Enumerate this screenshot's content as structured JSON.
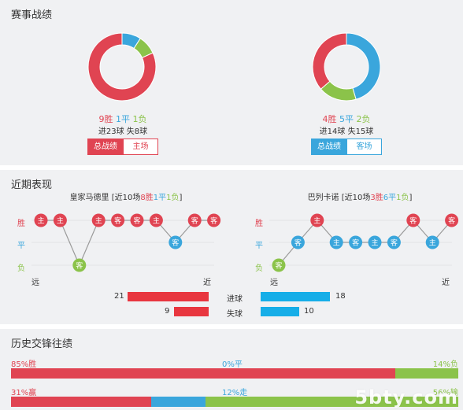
{
  "colors": {
    "win": "#e04452",
    "draw": "#3aa6dc",
    "loss": "#8bc34a",
    "scored_bar": "#e8363f",
    "conceded_bar": "#16aee8"
  },
  "season": {
    "title": "赛事战绩",
    "home": {
      "win": "9胜",
      "draw": "1平",
      "loss": "1负",
      "goals": "进23球  失8球",
      "btn_total": "总战绩",
      "btn_venue": "主场",
      "wins": 9,
      "draws": 1,
      "losses": 1
    },
    "away": {
      "win": "4胜",
      "draw": "5平",
      "loss": "2负",
      "goals": "进14球  失15球",
      "btn_total": "总战绩",
      "btn_venue": "客场",
      "wins": 4,
      "draws": 5,
      "losses": 2
    }
  },
  "recent": {
    "title": "近期表现",
    "row_labels": {
      "win": "胜",
      "draw": "平",
      "loss": "负"
    },
    "far": "远",
    "near": "近",
    "home": {
      "team": "皇家马德里",
      "prefix": "[近10场",
      "w": "8胜",
      "d": "1平",
      "l": "1负",
      "suffix": "]",
      "matches": [
        {
          "result": "W",
          "venue": "主"
        },
        {
          "result": "W",
          "venue": "主"
        },
        {
          "result": "L",
          "venue": "客"
        },
        {
          "result": "W",
          "venue": "主"
        },
        {
          "result": "W",
          "venue": "客"
        },
        {
          "result": "W",
          "venue": "客"
        },
        {
          "result": "W",
          "venue": "主"
        },
        {
          "result": "D",
          "venue": "客"
        },
        {
          "result": "W",
          "venue": "客"
        },
        {
          "result": "W",
          "venue": "客"
        }
      ]
    },
    "away": {
      "team": "巴列卡诺",
      "prefix": "[近10场",
      "w": "3胜",
      "d": "6平",
      "l": "1负",
      "suffix": "]",
      "matches": [
        {
          "result": "L",
          "venue": "客"
        },
        {
          "result": "D",
          "venue": "客"
        },
        {
          "result": "W",
          "venue": "主"
        },
        {
          "result": "D",
          "venue": "主"
        },
        {
          "result": "D",
          "venue": "客"
        },
        {
          "result": "D",
          "venue": "主"
        },
        {
          "result": "D",
          "venue": "客"
        },
        {
          "result": "W",
          "venue": "客"
        },
        {
          "result": "D",
          "venue": "主"
        },
        {
          "result": "W",
          "venue": "客"
        }
      ]
    },
    "stats": {
      "scored_label": "进球",
      "conceded_label": "失球",
      "home_scored": 21,
      "home_conceded": 9,
      "away_scored": 18,
      "away_conceded": 10
    }
  },
  "history": {
    "title": "历史交锋往绩",
    "row1": {
      "left": "85%胜",
      "mid": "0%平",
      "right": "14%负",
      "a": 85,
      "b": 0,
      "c": 14
    },
    "row2": {
      "left": "31%赢",
      "mid": "12%走",
      "right": "56%输",
      "a": 31,
      "b": 12,
      "c": 56
    }
  },
  "watermark": "5bty.com"
}
